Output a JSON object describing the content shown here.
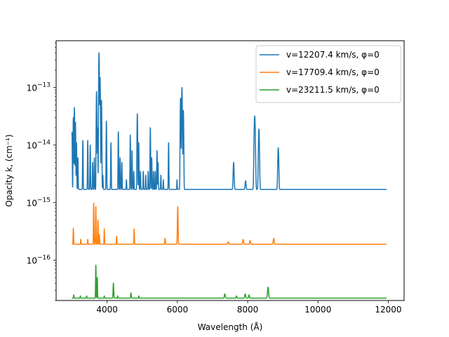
{
  "chart_data": {
    "type": "line",
    "title": "",
    "xlabel": "Wavelength (Å)",
    "ylabel": "Opacity k, (cm⁻¹)",
    "xlim": [
      2550,
      12450
    ],
    "ylim": [
      2e-17,
      6.5e-13
    ],
    "yscale": "log",
    "grid": false,
    "legend_position": "top-right",
    "x_ticks": [
      4000,
      6000,
      8000,
      10000,
      12000
    ],
    "x_tick_labels": [
      "4000",
      "6000",
      "8000",
      "10000",
      "12000"
    ],
    "y_ticks": [
      1e-16,
      1e-15,
      1e-14,
      1e-13
    ],
    "y_tick_labels": [
      {
        "base": "10",
        "exp": "−16"
      },
      {
        "base": "10",
        "exp": "−15"
      },
      {
        "base": "10",
        "exp": "−14"
      },
      {
        "base": "10",
        "exp": "−13"
      }
    ],
    "series": [
      {
        "name": "v=12207.4 km/s, φ=0",
        "color": "#1f77b4",
        "baseline": 1.7e-15,
        "x_range": [
          3000,
          11950
        ],
        "features": [
          [
            3000,
            1.7e-14,
            6
          ],
          [
            3040,
            3e-14,
            6
          ],
          [
            3070,
            4.5e-14,
            6
          ],
          [
            3100,
            2.5e-14,
            6
          ],
          [
            3130,
            1.1e-14,
            6
          ],
          [
            3170,
            6e-15,
            6
          ],
          [
            3310,
            1.2e-14,
            6
          ],
          [
            3450,
            1.2e-14,
            6
          ],
          [
            3520,
            1e-14,
            6
          ],
          [
            3590,
            5e-15,
            6
          ],
          [
            3640,
            6e-15,
            6
          ],
          [
            3700,
            8.5e-14,
            7
          ],
          [
            3730,
            2e-14,
            6
          ],
          [
            3770,
            4e-13,
            7
          ],
          [
            3800,
            1.5e-13,
            7
          ],
          [
            3840,
            6e-14,
            7
          ],
          [
            3880,
            3e-15,
            6
          ],
          [
            3980,
            2.6e-14,
            6
          ],
          [
            4110,
            1.1e-14,
            6
          ],
          [
            4320,
            1.7e-14,
            6
          ],
          [
            4370,
            6e-15,
            6
          ],
          [
            4420,
            5e-15,
            6
          ],
          [
            4550,
            2.5e-15,
            6
          ],
          [
            4660,
            1.5e-14,
            6
          ],
          [
            4710,
            8e-15,
            6
          ],
          [
            4760,
            3.5e-15,
            6
          ],
          [
            4860,
            3.5e-14,
            7
          ],
          [
            4900,
            1.1e-14,
            6
          ],
          [
            4950,
            3.5e-15,
            6
          ],
          [
            5030,
            3.5e-15,
            6
          ],
          [
            5100,
            3e-15,
            6
          ],
          [
            5170,
            3.5e-15,
            6
          ],
          [
            5230,
            2e-14,
            6
          ],
          [
            5270,
            6e-15,
            6
          ],
          [
            5320,
            3.5e-15,
            6
          ],
          [
            5370,
            3.5e-15,
            6
          ],
          [
            5420,
            8e-15,
            6
          ],
          [
            5450,
            5e-15,
            6
          ],
          [
            5530,
            3e-15,
            6
          ],
          [
            5600,
            2.5e-15,
            6
          ],
          [
            5750,
            1.1e-14,
            6
          ],
          [
            5990,
            2.5e-15,
            6
          ],
          [
            6090,
            6.5e-14,
            8
          ],
          [
            6130,
            1e-13,
            8
          ],
          [
            6170,
            4e-14,
            8
          ],
          [
            7600,
            5e-15,
            12
          ],
          [
            7940,
            2.4e-15,
            12
          ],
          [
            8200,
            3.2e-14,
            14
          ],
          [
            8320,
            1.9e-14,
            12
          ],
          [
            8870,
            9e-15,
            12
          ]
        ]
      },
      {
        "name": "v=17709.4 km/s, φ=0",
        "color": "#ff7f0e",
        "baseline": 1.9e-16,
        "x_range": [
          3000,
          11950
        ],
        "features": [
          [
            3040,
            3.6e-16,
            6
          ],
          [
            3250,
            2.3e-16,
            6
          ],
          [
            3450,
            2.3e-16,
            6
          ],
          [
            3620,
            9.8e-16,
            6
          ],
          [
            3680,
            8.5e-16,
            6
          ],
          [
            3740,
            5e-16,
            6
          ],
          [
            3780,
            2.8e-16,
            6
          ],
          [
            3920,
            3.5e-16,
            6
          ],
          [
            4270,
            2.6e-16,
            6
          ],
          [
            4770,
            3.5e-16,
            6
          ],
          [
            5650,
            2.4e-16,
            8
          ],
          [
            6010,
            8.5e-16,
            8
          ],
          [
            7450,
            2.1e-16,
            12
          ],
          [
            7870,
            2.3e-16,
            12
          ],
          [
            8070,
            2.2e-16,
            10
          ],
          [
            8740,
            2.4e-16,
            12
          ]
        ]
      },
      {
        "name": "v=23211.5 km/s, φ=0",
        "color": "#2ca02c",
        "baseline": 2.2e-17,
        "x_range": [
          3000,
          11950
        ],
        "features": [
          [
            3050,
            2.5e-17,
            6
          ],
          [
            3240,
            2.4e-17,
            6
          ],
          [
            3420,
            2.4e-17,
            6
          ],
          [
            3680,
            8.2e-17,
            6
          ],
          [
            3720,
            5e-17,
            6
          ],
          [
            3920,
            2.4e-17,
            6
          ],
          [
            4180,
            4e-17,
            8
          ],
          [
            4300,
            2.4e-17,
            6
          ],
          [
            4680,
            2.7e-17,
            8
          ],
          [
            4900,
            2.4e-17,
            6
          ],
          [
            7350,
            2.6e-17,
            12
          ],
          [
            7680,
            2.4e-17,
            10
          ],
          [
            7930,
            2.6e-17,
            12
          ],
          [
            8040,
            2.5e-17,
            10
          ],
          [
            8580,
            3.4e-17,
            14
          ]
        ]
      }
    ]
  }
}
